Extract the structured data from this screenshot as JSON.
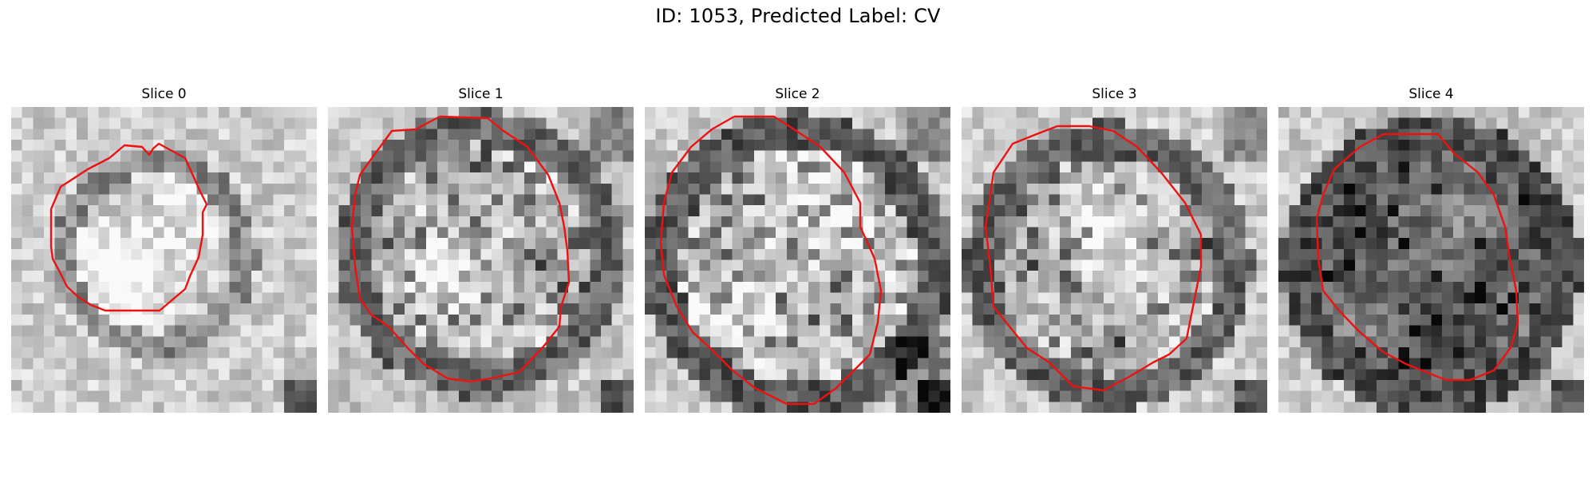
{
  "figure": {
    "title": "ID: 1053, Predicted Label: CV"
  },
  "colors": {
    "contour": "#ee1111",
    "background": "#ffffff",
    "colormap": "gray"
  },
  "slices": [
    {
      "label": "Slice 0"
    },
    {
      "label": "Slice 1"
    },
    {
      "label": "Slice 2"
    },
    {
      "label": "Slice 3"
    },
    {
      "label": "Slice 4"
    }
  ]
}
